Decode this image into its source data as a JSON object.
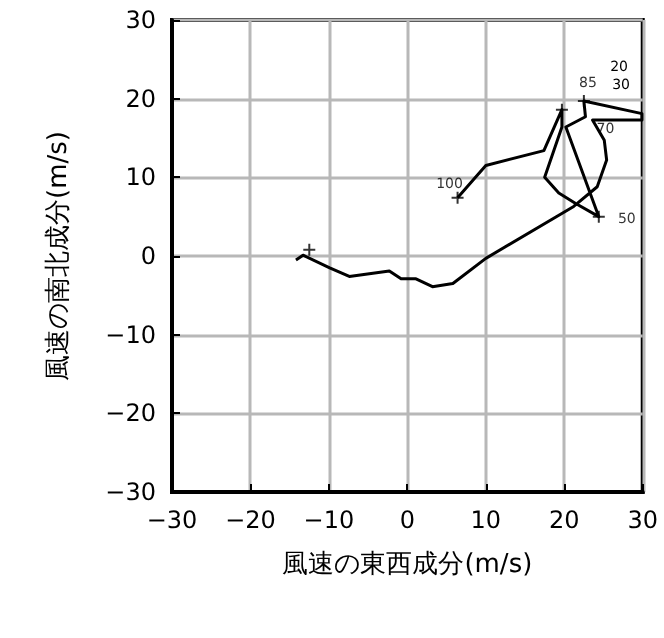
{
  "chart_data": {
    "type": "line",
    "xlabel": "風速の東西成分(m/s)",
    "ylabel": "風速の南北成分(m/s)",
    "xlim": [
      -30,
      30
    ],
    "ylim": [
      -30,
      30
    ],
    "xticks": [
      {
        "value": -30,
        "label": "−30"
      },
      {
        "value": -20,
        "label": "−20"
      },
      {
        "value": -10,
        "label": "−10"
      },
      0,
      10,
      20,
      30
    ],
    "yticks": [
      {
        "value": -30,
        "label": "−30"
      },
      {
        "value": -20,
        "label": "−20"
      },
      {
        "value": -10,
        "label": "−10"
      },
      0,
      10,
      20,
      30
    ],
    "grid": true,
    "series": [
      {
        "color": "#000000",
        "marker": "none",
        "line_style": "solid",
        "x": [
          6.4,
          10.0,
          17.4,
          19.7,
          19.7,
          17.5,
          19.3,
          21.4,
          24.4,
          20.2,
          22.7,
          22.5,
          29.9,
          29.9,
          23.6,
          25.1,
          25.4,
          24.2,
          21.2,
          10.0,
          5.8,
          3.2,
          1.1,
          -0.8,
          -2.3,
          -7.4,
          -9.9,
          -13.3,
          -14.2
        ],
        "values": [
          7.4,
          11.5,
          13.4,
          18.6,
          16.4,
          10.0,
          8.0,
          6.7,
          5.0,
          16.4,
          17.7,
          19.7,
          18.1,
          17.3,
          17.3,
          14.7,
          12.2,
          8.8,
          6.3,
          -0.3,
          -3.5,
          -3.9,
          -2.9,
          -2.9,
          -1.9,
          -2.6,
          -1.5,
          0.1,
          -0.5
        ]
      },
      {
        "type": "scatter",
        "color": "#000000",
        "marker": "cross",
        "x": [
          6.4,
          19.7,
          22.5,
          24.4,
          -12.5
        ],
        "values": [
          7.4,
          18.6,
          19.7,
          5.0,
          0.8
        ]
      }
    ],
    "annotations": [
      {
        "text": "100",
        "x": 6.4,
        "y": 7.4
      },
      {
        "text": "85",
        "x": 22.5,
        "y": 19.7
      },
      {
        "text": "70",
        "x": 22.7,
        "y": 17.7
      },
      {
        "text": "50",
        "x": 24.4,
        "y": 5.0
      },
      "20",
      "30"
    ]
  }
}
